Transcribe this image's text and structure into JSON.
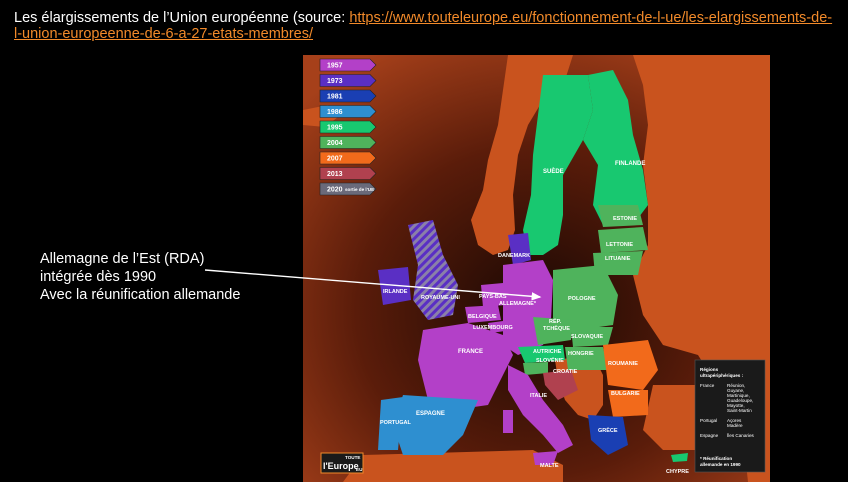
{
  "header": {
    "title_prefix": "Les élargissements de l’Union européenne (source: ",
    "link_text": "https://www.touteleurope.eu/fonctionnement-de-l-ue/les-elargissements-de-l-union-europeenne-de-6-a-27-etats-membres/",
    "link_href": "https://www.touteleurope.eu/fonctionnement-de-l-ue/les-elargissements-de-l-union-europeenne-de-6-a-27-etats-membres/",
    "title_suffix": ""
  },
  "annotation": {
    "line1": "Allemagne de l’Est (RDA)",
    "line2": "intégrée dès 1990",
    "line3": "Avec la réunification allemande"
  },
  "legend": [
    {
      "label": "1957",
      "color": "#b340c8"
    },
    {
      "label": "1973",
      "color": "#5a2fc4"
    },
    {
      "label": "1981",
      "color": "#1a3fb3"
    },
    {
      "label": "1986",
      "color": "#2e8fd0"
    },
    {
      "label": "1995",
      "color": "#18c870"
    },
    {
      "label": "2004",
      "color": "#4fb35c"
    },
    {
      "label": "2007",
      "color": "#f26a1b"
    },
    {
      "label": "2013",
      "color": "#b0414f"
    },
    {
      "label": "2020",
      "extra": "sortie de l'UE",
      "color": "#6a6a7a"
    }
  ],
  "countries": {
    "finlande": "FINLANDE",
    "suede": "SUÈDE",
    "estonie": "ESTONIE",
    "lettonie": "LETTONIE",
    "lituanie": "LITUANIE",
    "danemark": "DANEMARK",
    "irlande": "IRLANDE",
    "royaume_uni": "ROYAUME-UNI",
    "pays_bas": "PAYS-BAS",
    "allemagne": "ALLEMAGNE*",
    "pologne": "POLOGNE",
    "belgique": "BELGIQUE",
    "luxembourg": "LUXEMBOURG",
    "rep_tcheque_1": "RÉP.",
    "rep_tcheque_2": "TCHÈQUE",
    "slovaquie": "SLOVAQUIE",
    "france": "FRANCE",
    "autriche": "AUTRICHE",
    "hongrie": "HONGRIE",
    "slovenie": "SLOVÉNIE",
    "croatie": "CROATIE",
    "roumanie": "ROUMANIE",
    "bulgarie": "BULGARIE",
    "italie": "ITALIE",
    "espagne": "ESPAGNE",
    "portugal": "PORTUGAL",
    "grece": "GRÈCE",
    "malte": "MALTE",
    "chypre": "CHYPRE"
  },
  "regions_box": {
    "title1": "Régions",
    "title2": "ultrapériphériques :",
    "rows": [
      {
        "country": "France",
        "regions": [
          "Réunion,",
          "Guyane,",
          "Martinique,",
          "Guadeloupe,",
          "Mayotte,",
          "Saint-Martin"
        ]
      },
      {
        "country": "Portugal",
        "regions": [
          "Açores",
          "Madère"
        ]
      },
      {
        "country": "Espagne",
        "regions": [
          "Îles Canaries"
        ]
      }
    ],
    "footnote1": "* Réunification",
    "footnote2": "allemande en 1990"
  },
  "logo": {
    "small": "TOUTE",
    "main": "l'Europe",
    "suffix": "EU"
  },
  "colors": {
    "background": "#000000",
    "sea": "#5a1c0a",
    "nonEU": "#c9531e",
    "link": "#f28a2a"
  }
}
